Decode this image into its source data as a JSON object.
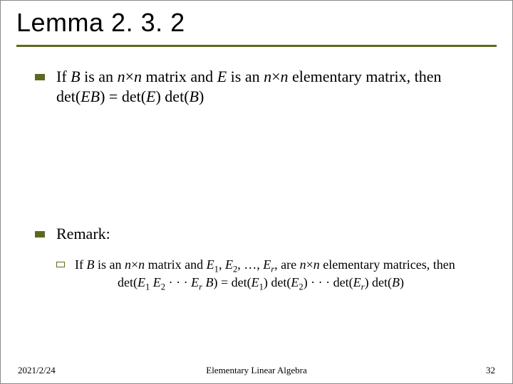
{
  "accent_color": "#5a6b1f",
  "title": "Lemma 2. 3. 2",
  "bullet1_html": "If <span class='ital'>B</span> is an <span class='ital'>n</span>×<span class='ital'>n</span> matrix and <span class='ital'>E</span> is an <span class='ital'>n</span>×<span class='ital'>n</span> elementary matrix, then det(<span class='ital'>EB</span>) = det(<span class='ital'>E</span>) det(<span class='ital'>B</span>)",
  "bullet2": "Remark:",
  "sub1_line1_html": "If <span class='ital'>B</span> is an <span class='ital'>n</span>×<span class='ital'>n</span> matrix and <span class='ital'>E</span><span class='sub'>1</span>, <span class='ital'>E</span><span class='sub'>2</span>, …, <span class='ital'>E</span><span class='sub ital'>r</span>, are <span class='ital'>n</span>×<span class='ital'>n</span> elementary matrices, then",
  "sub1_line2_html": "det(<span class='ital'>E</span><span class='sub'>1</span> <span class='ital'>E</span><span class='sub'>2</span> · · · <span class='ital'>E</span><span class='sub ital'>r</span> <span class='ital'>B</span>) = det(<span class='ital'>E</span><span class='sub'>1</span>) det(<span class='ital'>E</span><span class='sub'>2</span>) · · · det(<span class='ital'>E</span><span class='sub ital'>r</span>) det(<span class='ital'>B</span>)",
  "footer": {
    "date": "2021/2/24",
    "center": "Elementary Linear Algebra",
    "page": "32"
  }
}
